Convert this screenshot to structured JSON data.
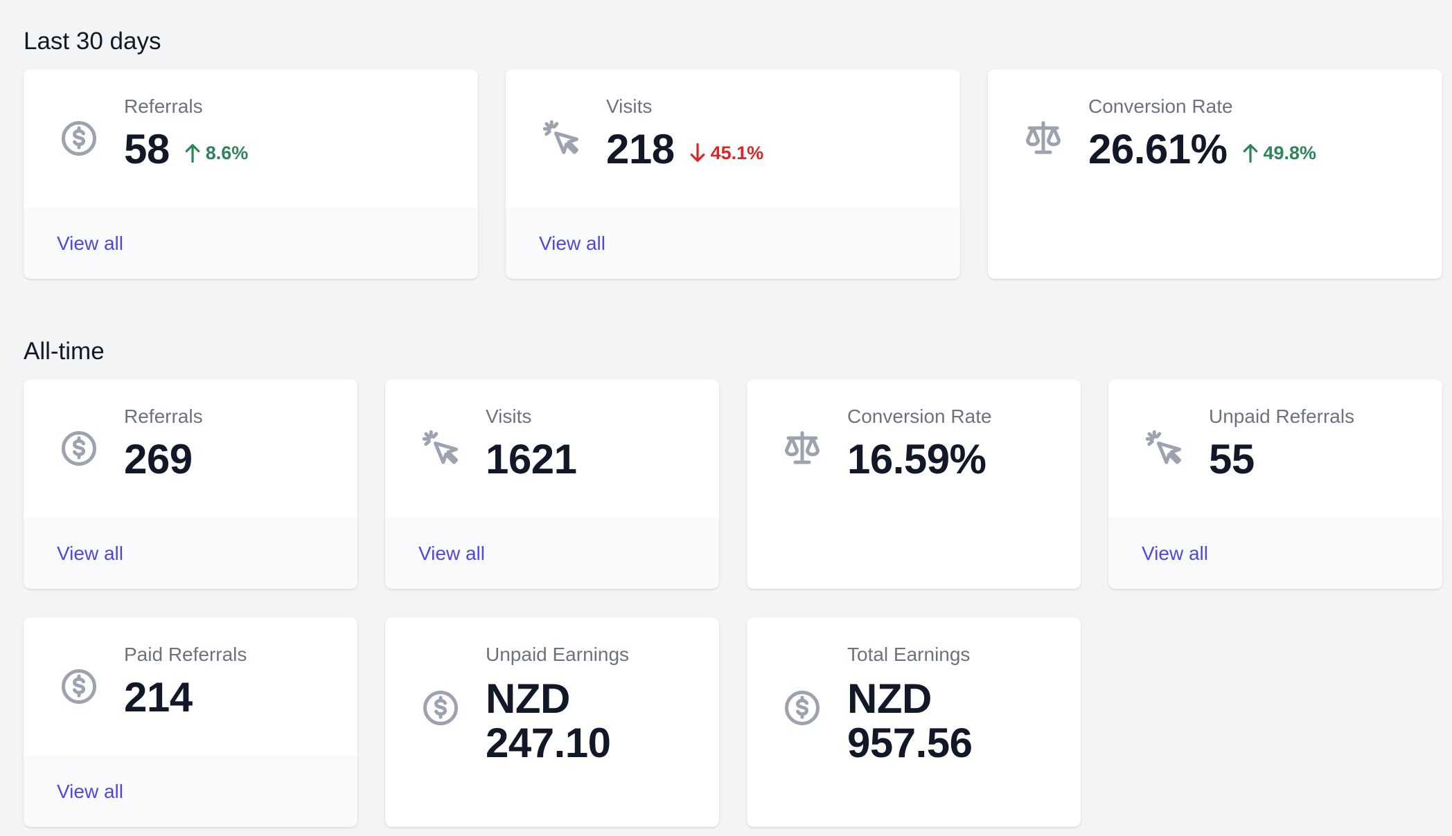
{
  "sections": {
    "last30": {
      "title": "Last 30 days",
      "cards": [
        {
          "label": "Referrals",
          "value": "58",
          "change": "8.6%",
          "direction": "up",
          "icon": "dollar-circle-icon",
          "link": "View all"
        },
        {
          "label": "Visits",
          "value": "218",
          "change": "45.1%",
          "direction": "down",
          "icon": "cursor-click-icon",
          "link": "View all"
        },
        {
          "label": "Conversion Rate",
          "value": "26.61%",
          "change": "49.8%",
          "direction": "up",
          "icon": "scale-icon"
        }
      ]
    },
    "alltime": {
      "title": "All-time",
      "cards": [
        {
          "label": "Referrals",
          "value": "269",
          "icon": "dollar-circle-icon",
          "link": "View all"
        },
        {
          "label": "Visits",
          "value": "1621",
          "icon": "cursor-click-icon",
          "link": "View all"
        },
        {
          "label": "Conversion Rate",
          "value": "16.59%",
          "icon": "scale-icon"
        },
        {
          "label": "Unpaid Referrals",
          "value": "55",
          "icon": "cursor-click-icon",
          "link": "View all"
        },
        {
          "label": "Paid Referrals",
          "value": "214",
          "icon": "dollar-circle-icon",
          "link": "View all"
        },
        {
          "label": "Unpaid Earnings",
          "value": "NZD\n247.10",
          "icon": "dollar-circle-icon"
        },
        {
          "label": "Total Earnings",
          "value": "NZD\n957.56",
          "icon": "dollar-circle-icon"
        }
      ]
    }
  },
  "colors": {
    "background": "#f3f4f6",
    "card": "#ffffff",
    "footer": "#f9fafb",
    "link": "#4f46e5",
    "up": "#2f855a",
    "down": "#dc2626",
    "icon": "#9ca3af"
  }
}
